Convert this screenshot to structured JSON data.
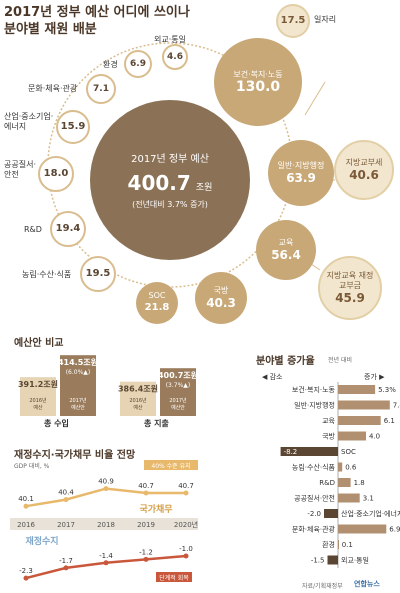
{
  "title_line1": "2017년 정부 예산 어디에 쓰이나",
  "title_line2": "분야별 재원 배분",
  "center": {
    "name": "2017년 정부 예산",
    "value": "400.7",
    "unit": "조원",
    "sub": "(전년대비 3.7% 증가)"
  },
  "bubbles": [
    {
      "key": "welfare",
      "name": "보건·복지·노동",
      "value": "130.0"
    },
    {
      "key": "general",
      "name": "일반·지방행정",
      "value": "63.9"
    },
    {
      "key": "edu",
      "name": "교육",
      "value": "56.4"
    },
    {
      "key": "defense",
      "name": "국방",
      "value": "40.3"
    },
    {
      "key": "soc",
      "name": "SOC",
      "value": "21.8"
    },
    {
      "key": "agri",
      "name": "농림·수산·식품",
      "value": "19.5"
    },
    {
      "key": "rnd",
      "name": "R&D",
      "value": "19.4"
    },
    {
      "key": "public",
      "name": "공공질서·안전",
      "value": "18.0"
    },
    {
      "key": "industry",
      "name": "산업·중소기업·에너지",
      "value": "15.9"
    },
    {
      "key": "culture",
      "name": "문화·체육·관광",
      "value": "7.1"
    },
    {
      "key": "env",
      "name": "환경",
      "value": "6.9"
    },
    {
      "key": "foreign",
      "name": "외교·통일",
      "value": "4.6"
    },
    {
      "key": "jobs",
      "name": "일자리",
      "value": "17.5"
    },
    {
      "key": "localtax",
      "name": "지방교부세",
      "value": "40.6"
    },
    {
      "key": "localedu",
      "name": "지방교육 재정교부금",
      "value": "45.9"
    }
  ],
  "budget_compare": {
    "title": "예산안 비교",
    "groups": [
      {
        "label": "총 수입",
        "bars": [
          {
            "year": "2016년 예산",
            "value": "391.2",
            "unit": "조원",
            "note": ""
          },
          {
            "year": "2017년 예산안",
            "value": "414.5",
            "unit": "조원",
            "note": "(6.0%▲)"
          }
        ]
      },
      {
        "label": "총 지출",
        "bars": [
          {
            "year": "2016년 예산",
            "value": "386.4",
            "unit": "조원",
            "note": ""
          },
          {
            "year": "2017년 예산안",
            "value": "400.7",
            "unit": "조원",
            "note": "(3.7%▲)"
          }
        ]
      }
    ]
  },
  "fiscal": {
    "title": "재정수지·국가채무 비율 전망",
    "unit": "GDP 대비, %",
    "years": [
      "2016",
      "2017",
      "2018",
      "2019",
      "2020년"
    ],
    "debt_label": "국가채무",
    "debt_note": "40% 수준 유지",
    "debt": [
      40.1,
      40.4,
      40.9,
      40.7,
      40.7
    ],
    "balance_label": "재정수지",
    "balance_note": "단계적 회복",
    "balance": [
      -2.3,
      -1.7,
      -1.4,
      -1.2,
      -1.0
    ]
  },
  "growth": {
    "title": "분야별 증가율",
    "unit": "전년 대비",
    "decrease": "◀ 감소",
    "increase": "증가 ▶",
    "items": [
      {
        "name": "보건·복지·노동",
        "value": 5.3,
        "label": "5.3%"
      },
      {
        "name": "일반·지방행정",
        "value": 7.4,
        "label": "7.4"
      },
      {
        "name": "교육",
        "value": 6.1,
        "label": "6.1"
      },
      {
        "name": "국방",
        "value": 4.0,
        "label": "4.0"
      },
      {
        "name": "SOC",
        "value": -8.2,
        "label": "-8.2"
      },
      {
        "name": "농림·수산·식품",
        "value": 0.6,
        "label": "0.6"
      },
      {
        "name": "R&D",
        "value": 1.8,
        "label": "1.8"
      },
      {
        "name": "공공질서·안전",
        "value": 3.1,
        "label": "3.1"
      },
      {
        "name": "산업·중소기업·에너지",
        "value": -2.0,
        "label": "-2.0"
      },
      {
        "name": "문화·체육·관광",
        "value": 6.9,
        "label": "6.9"
      },
      {
        "name": "환경",
        "value": 0.1,
        "label": "0.1"
      },
      {
        "name": "외교·통일",
        "value": -1.5,
        "label": "-1.5"
      }
    ]
  },
  "source": "자료/기획재정부",
  "logo": "연합뉴스",
  "chart_data": [
    {
      "type": "bar",
      "title": "분야별 재원 배분",
      "categories": [
        "보건·복지·노동",
        "일반·지방행정",
        "교육",
        "국방",
        "SOC",
        "농림·수산·식품",
        "R&D",
        "공공질서·안전",
        "산업·중소기업·에너지",
        "문화·체육·관광",
        "환경",
        "외교·통일",
        "일자리",
        "지방교부세",
        "지방교육 재정교부금"
      ],
      "values": [
        130.0,
        63.9,
        56.4,
        40.3,
        21.8,
        19.5,
        19.4,
        18.0,
        15.9,
        7.1,
        6.9,
        4.6,
        17.5,
        40.6,
        45.9
      ]
    },
    {
      "type": "bar",
      "title": "예산안 비교",
      "categories": [
        "총 수입",
        "총 지출"
      ],
      "series": [
        {
          "name": "2016년 예산",
          "values": [
            391.2,
            386.4
          ]
        },
        {
          "name": "2017년 예산안",
          "values": [
            414.5,
            400.7
          ]
        }
      ]
    },
    {
      "type": "line",
      "title": "재정수지·국가채무 비율 전망",
      "x": [
        "2016",
        "2017",
        "2018",
        "2019",
        "2020년"
      ],
      "series": [
        {
          "name": "국가채무",
          "values": [
            40.1,
            40.4,
            40.9,
            40.7,
            40.7
          ]
        },
        {
          "name": "재정수지",
          "values": [
            -2.3,
            -1.7,
            -1.4,
            -1.2,
            -1.0
          ]
        }
      ]
    },
    {
      "type": "bar",
      "title": "분야별 증가율",
      "categories": [
        "보건·복지·노동",
        "일반·지방행정",
        "교육",
        "국방",
        "SOC",
        "농림·수산·식품",
        "R&D",
        "공공질서·안전",
        "산업·중소기업·에너지",
        "문화·체육·관광",
        "환경",
        "외교·통일"
      ],
      "values": [
        5.3,
        7.4,
        6.1,
        4.0,
        -8.2,
        0.6,
        1.8,
        3.1,
        -2.0,
        6.9,
        0.1,
        -1.5
      ]
    }
  ]
}
